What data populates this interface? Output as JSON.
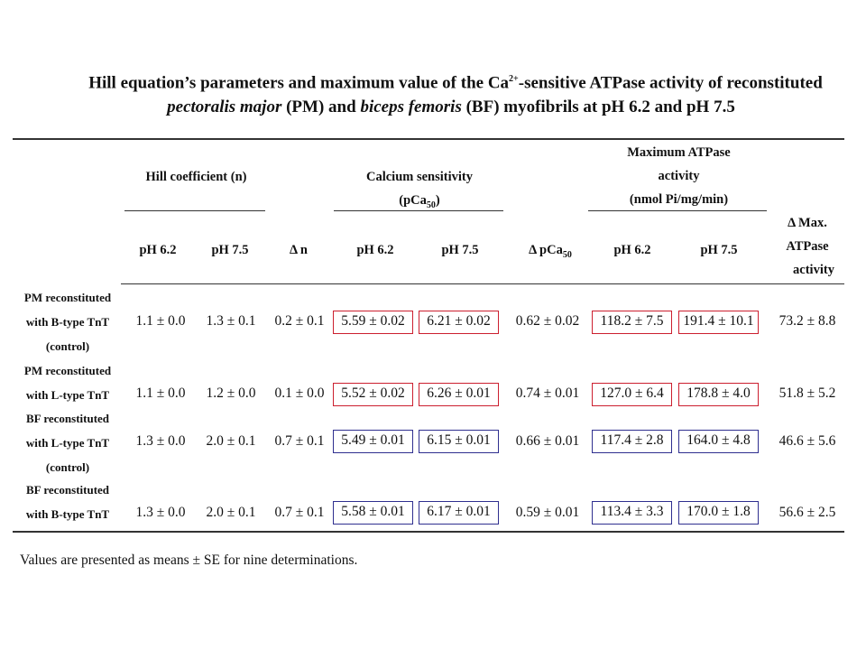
{
  "title": {
    "line1_a": "Hill equation’s parameters and maximum value of the Ca",
    "line1_sup": "2+",
    "line1_b": "-sensitive ATPase activity of reconstituted",
    "line2_a": "pectoralis major",
    "line2_b": " (PM) and ",
    "line2_c": "biceps femoris",
    "line2_d": " (BF) myofibrils at pH 6.2 and pH 7.5"
  },
  "headers": {
    "hill": "Hill coefficient (n)",
    "calcium_line1": "Calcium sensitivity",
    "calcium_line2_a": "(pCa",
    "calcium_line2_sub": "50",
    "calcium_line2_b": ")",
    "max_line1": "Maximum ATPase",
    "max_line2": "activity",
    "max_line3": "(nmol Pi/mg/min)",
    "delta_max_line1": "Δ Max.",
    "delta_max_line2": "ATPase",
    "delta_max_line3": "activity",
    "ph62": "pH 6.2",
    "ph75": "pH 7.5",
    "delta_n": "Δ n",
    "delta_pca_a": "Δ pCa",
    "delta_pca_sub": "50"
  },
  "rows": [
    {
      "label": [
        "PM reconstituted",
        "with B-type TnT",
        "(control)"
      ],
      "values": [
        "1.1 ± 0.0",
        "1.3 ± 0.1",
        "0.2 ± 0.1",
        "5.59 ± 0.02",
        "6.21 ± 0.02",
        "0.62 ± 0.02",
        "118.2 ± 7.5",
        "191.4 ± 10.1",
        "73.2 ± 8.8"
      ],
      "box_color": "red"
    },
    {
      "label": [
        "PM reconstituted",
        "with L-type TnT"
      ],
      "values": [
        "1.1 ± 0.0",
        "1.2 ± 0.0",
        "0.1 ± 0.0",
        "5.52 ± 0.02",
        "6.26 ± 0.01",
        "0.74 ± 0.01",
        "127.0 ± 6.4",
        "178.8 ± 4.0",
        "51.8 ± 5.2"
      ],
      "box_color": "red"
    },
    {
      "label": [
        "BF reconstituted",
        "with L-type TnT",
        "(control)"
      ],
      "values": [
        "1.3 ± 0.0",
        "2.0 ± 0.1",
        "0.7 ± 0.1",
        "5.49 ± 0.01",
        "6.15 ± 0.01",
        "0.66 ± 0.01",
        "117.4 ± 2.8",
        "164.0 ± 4.8",
        "46.6 ± 5.6"
      ],
      "box_color": "blue"
    },
    {
      "label": [
        "BF reconstituted",
        "with B-type TnT"
      ],
      "values": [
        "1.3 ± 0.0",
        "2.0 ± 0.1",
        "0.7 ± 0.1",
        "5.58 ± 0.01",
        "6.17 ± 0.01",
        "0.59 ± 0.01",
        "113.4 ± 3.3",
        "170.0 ± 1.8",
        "56.6 ± 2.5"
      ],
      "box_color": "blue"
    }
  ],
  "footnote": "Values are presented as means ± SE for nine determinations.",
  "colors": {
    "red_box": "#cc1f2f",
    "blue_box": "#2f2f8f"
  }
}
